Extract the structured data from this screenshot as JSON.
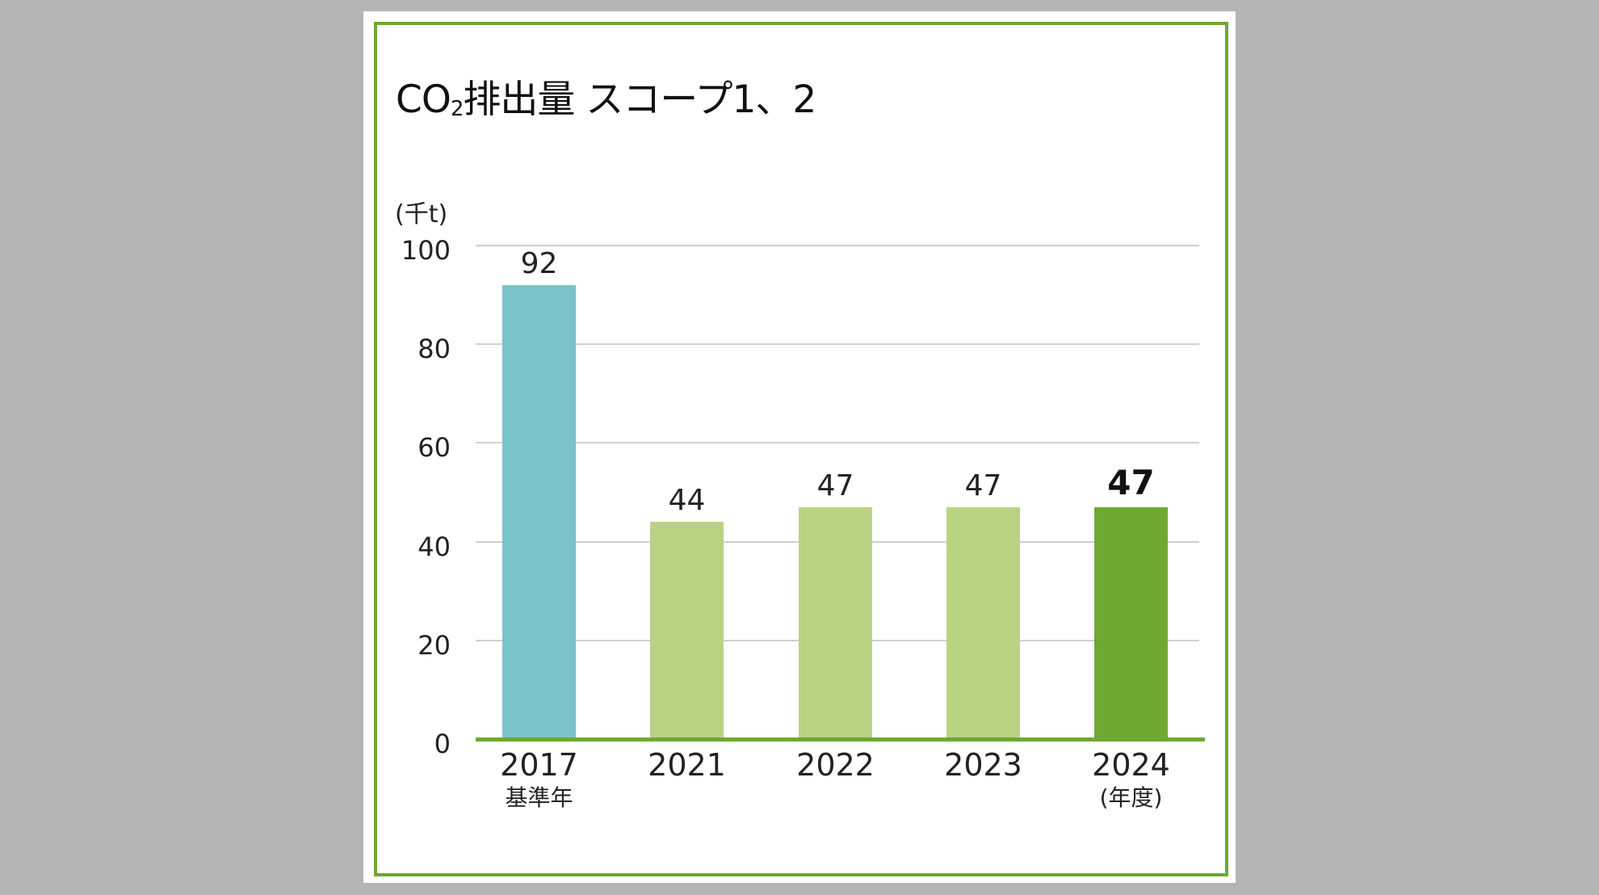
{
  "title": {
    "prefix": "CO",
    "subscript": "2",
    "suffix": "排出量 スコープ1、2"
  },
  "unit_label": "(千t)",
  "colors": {
    "background": "#B4B5B4",
    "card": "#FFFFFF",
    "frame": "#6FA832",
    "base_year_bar": "#79C3C9",
    "past_year_bar": "#B9D383",
    "current_year_bar": "#6FA832",
    "gridline": "#CFCFCF",
    "axis_line": "#6FA832"
  },
  "chart_data": {
    "type": "bar",
    "title": "CO2排出量 スコープ1、2",
    "xlabel": "(年度)",
    "ylabel": "(千t)",
    "ylim": [
      0,
      100
    ],
    "yticks": [
      0,
      20,
      40,
      60,
      80,
      100
    ],
    "grid": true,
    "categories": [
      "2017",
      "2021",
      "2022",
      "2023",
      "2024"
    ],
    "category_sublabels": [
      "基準年",
      "",
      "",
      "",
      "(年度)"
    ],
    "values": [
      92,
      44,
      47,
      47,
      47
    ],
    "value_labels": [
      "92",
      "44",
      "47",
      "47",
      "47"
    ],
    "bar_styles": [
      "base_year",
      "past_year",
      "past_year",
      "past_year",
      "current_year"
    ],
    "highlight_index": 4
  }
}
